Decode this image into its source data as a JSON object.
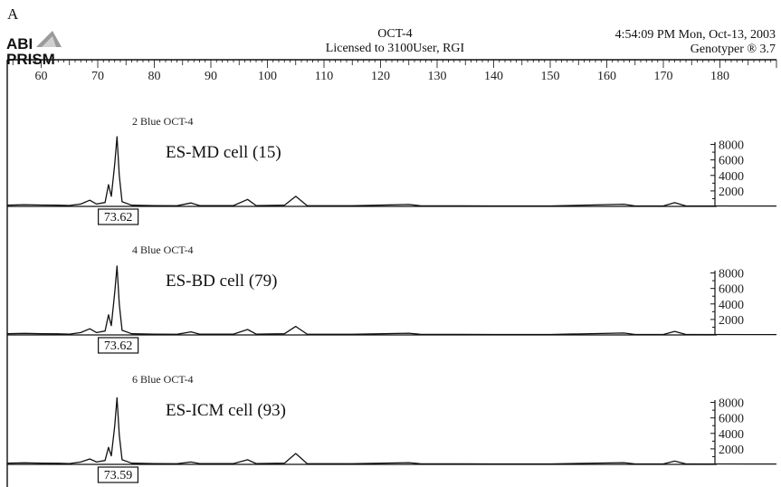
{
  "figure": {
    "panel_letter": "A",
    "logo_line1": "ABI",
    "logo_line2": "PRISM",
    "title": "OCT-4",
    "license": "Licensed to 3100User, RGI",
    "timestamp": "4:54:09 PM Mon, Oct-13, 2003",
    "software": "Genotyper ® 3.7"
  },
  "chart_data": {
    "type": "line",
    "x_ticks": [
      60,
      70,
      80,
      90,
      100,
      110,
      120,
      130,
      140,
      150,
      160,
      170,
      180
    ],
    "xlim": [
      54,
      190
    ],
    "y_ticks": [
      2000,
      4000,
      6000,
      8000
    ],
    "ylim": [
      0,
      9500
    ],
    "lanes": [
      {
        "lane_label": "2 Blue OCT-4",
        "sample": "ES-MD cell (15)",
        "peak_label": "73.62",
        "points": [
          [
            54,
            150
          ],
          [
            57,
            220
          ],
          [
            60,
            170
          ],
          [
            63,
            150
          ],
          [
            65,
            120
          ],
          [
            67,
            300
          ],
          [
            68.6,
            800
          ],
          [
            69.8,
            300
          ],
          [
            71.3,
            500
          ],
          [
            71.9,
            2800
          ],
          [
            72.4,
            1300
          ],
          [
            73.0,
            5500
          ],
          [
            73.4,
            9000
          ],
          [
            73.8,
            4000
          ],
          [
            74.3,
            600
          ],
          [
            76,
            150
          ],
          [
            80,
            100
          ],
          [
            84,
            80
          ],
          [
            86.5,
            450
          ],
          [
            88,
            100
          ],
          [
            94,
            100
          ],
          [
            96.5,
            900
          ],
          [
            98,
            100
          ],
          [
            103,
            150
          ],
          [
            105,
            1300
          ],
          [
            107,
            100
          ],
          [
            115,
            80
          ],
          [
            125,
            250
          ],
          [
            127,
            80
          ],
          [
            140,
            60
          ],
          [
            150,
            60
          ],
          [
            163,
            280
          ],
          [
            165,
            60
          ],
          [
            170,
            60
          ],
          [
            172,
            480
          ],
          [
            174,
            60
          ],
          [
            185,
            50
          ],
          [
            190,
            50
          ]
        ]
      },
      {
        "lane_label": "4 Blue OCT-4",
        "sample": "ES-BD cell (79)",
        "peak_label": "73.62",
        "points": [
          [
            54,
            150
          ],
          [
            57,
            200
          ],
          [
            60,
            150
          ],
          [
            63,
            140
          ],
          [
            65,
            110
          ],
          [
            67,
            300
          ],
          [
            68.6,
            800
          ],
          [
            69.8,
            300
          ],
          [
            71.3,
            500
          ],
          [
            71.9,
            2600
          ],
          [
            72.4,
            1200
          ],
          [
            73.0,
            5500
          ],
          [
            73.4,
            8900
          ],
          [
            73.8,
            4000
          ],
          [
            74.3,
            600
          ],
          [
            76,
            150
          ],
          [
            80,
            100
          ],
          [
            84,
            80
          ],
          [
            86.5,
            400
          ],
          [
            88,
            100
          ],
          [
            94,
            100
          ],
          [
            96.5,
            700
          ],
          [
            98,
            100
          ],
          [
            103,
            150
          ],
          [
            105,
            1100
          ],
          [
            107,
            100
          ],
          [
            115,
            80
          ],
          [
            125,
            220
          ],
          [
            127,
            80
          ],
          [
            140,
            60
          ],
          [
            150,
            60
          ],
          [
            163,
            240
          ],
          [
            165,
            60
          ],
          [
            170,
            60
          ],
          [
            172,
            450
          ],
          [
            174,
            60
          ],
          [
            185,
            50
          ],
          [
            190,
            50
          ]
        ]
      },
      {
        "lane_label": "6 Blue OCT-4",
        "sample": "ES-ICM cell (93)",
        "peak_label": "73.59",
        "points": [
          [
            54,
            150
          ],
          [
            57,
            200
          ],
          [
            60,
            150
          ],
          [
            63,
            140
          ],
          [
            65,
            110
          ],
          [
            67,
            300
          ],
          [
            68.6,
            700
          ],
          [
            69.8,
            300
          ],
          [
            71.3,
            500
          ],
          [
            71.9,
            2200
          ],
          [
            72.4,
            1100
          ],
          [
            73.0,
            5000
          ],
          [
            73.4,
            8600
          ],
          [
            73.8,
            3800
          ],
          [
            74.3,
            600
          ],
          [
            76,
            150
          ],
          [
            80,
            100
          ],
          [
            84,
            80
          ],
          [
            86.5,
            300
          ],
          [
            88,
            100
          ],
          [
            94,
            100
          ],
          [
            96.5,
            600
          ],
          [
            98,
            100
          ],
          [
            103,
            150
          ],
          [
            105,
            1400
          ],
          [
            107,
            100
          ],
          [
            115,
            80
          ],
          [
            125,
            220
          ],
          [
            127,
            80
          ],
          [
            140,
            60
          ],
          [
            150,
            60
          ],
          [
            163,
            220
          ],
          [
            165,
            60
          ],
          [
            170,
            60
          ],
          [
            172,
            420
          ],
          [
            174,
            60
          ],
          [
            185,
            50
          ],
          [
            190,
            50
          ]
        ]
      }
    ]
  }
}
